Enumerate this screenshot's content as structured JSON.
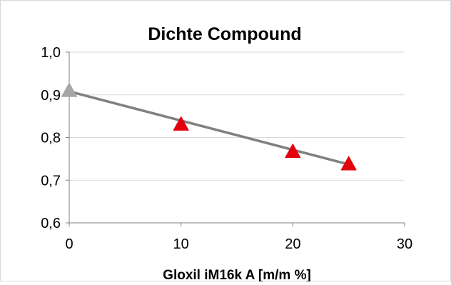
{
  "chart_data": {
    "type": "scatter",
    "title": "Dichte Compound",
    "xlabel": "Gloxil iM16k A [m/m %]",
    "ylabel": "",
    "xlim": [
      0,
      30
    ],
    "ylim": [
      0.6,
      1.0
    ],
    "x_ticks": [
      0,
      10,
      20,
      30
    ],
    "x_tick_labels": [
      "0",
      "10",
      "20",
      "30"
    ],
    "y_ticks": [
      0.6,
      0.7,
      0.8,
      0.9,
      1.0
    ],
    "y_tick_labels": [
      "0,6",
      "0,7",
      "0,8",
      "0,9",
      "1,0"
    ],
    "grid": "horizontal",
    "legend": "none",
    "series": [
      {
        "x": [
          0,
          10,
          20,
          25
        ],
        "y": [
          0.908,
          0.829,
          0.765,
          0.736
        ],
        "marker": "triangle",
        "marker_colors": [
          "#a6a6a6",
          "#e3000f",
          "#e3000f",
          "#e3000f"
        ]
      }
    ],
    "trendline": {
      "x": [
        0,
        25
      ],
      "y": [
        0.908,
        0.737
      ],
      "color": "#808080"
    },
    "colors": {
      "grid": "#d9d9d9",
      "axis": "#808080",
      "text": "#000000"
    }
  }
}
